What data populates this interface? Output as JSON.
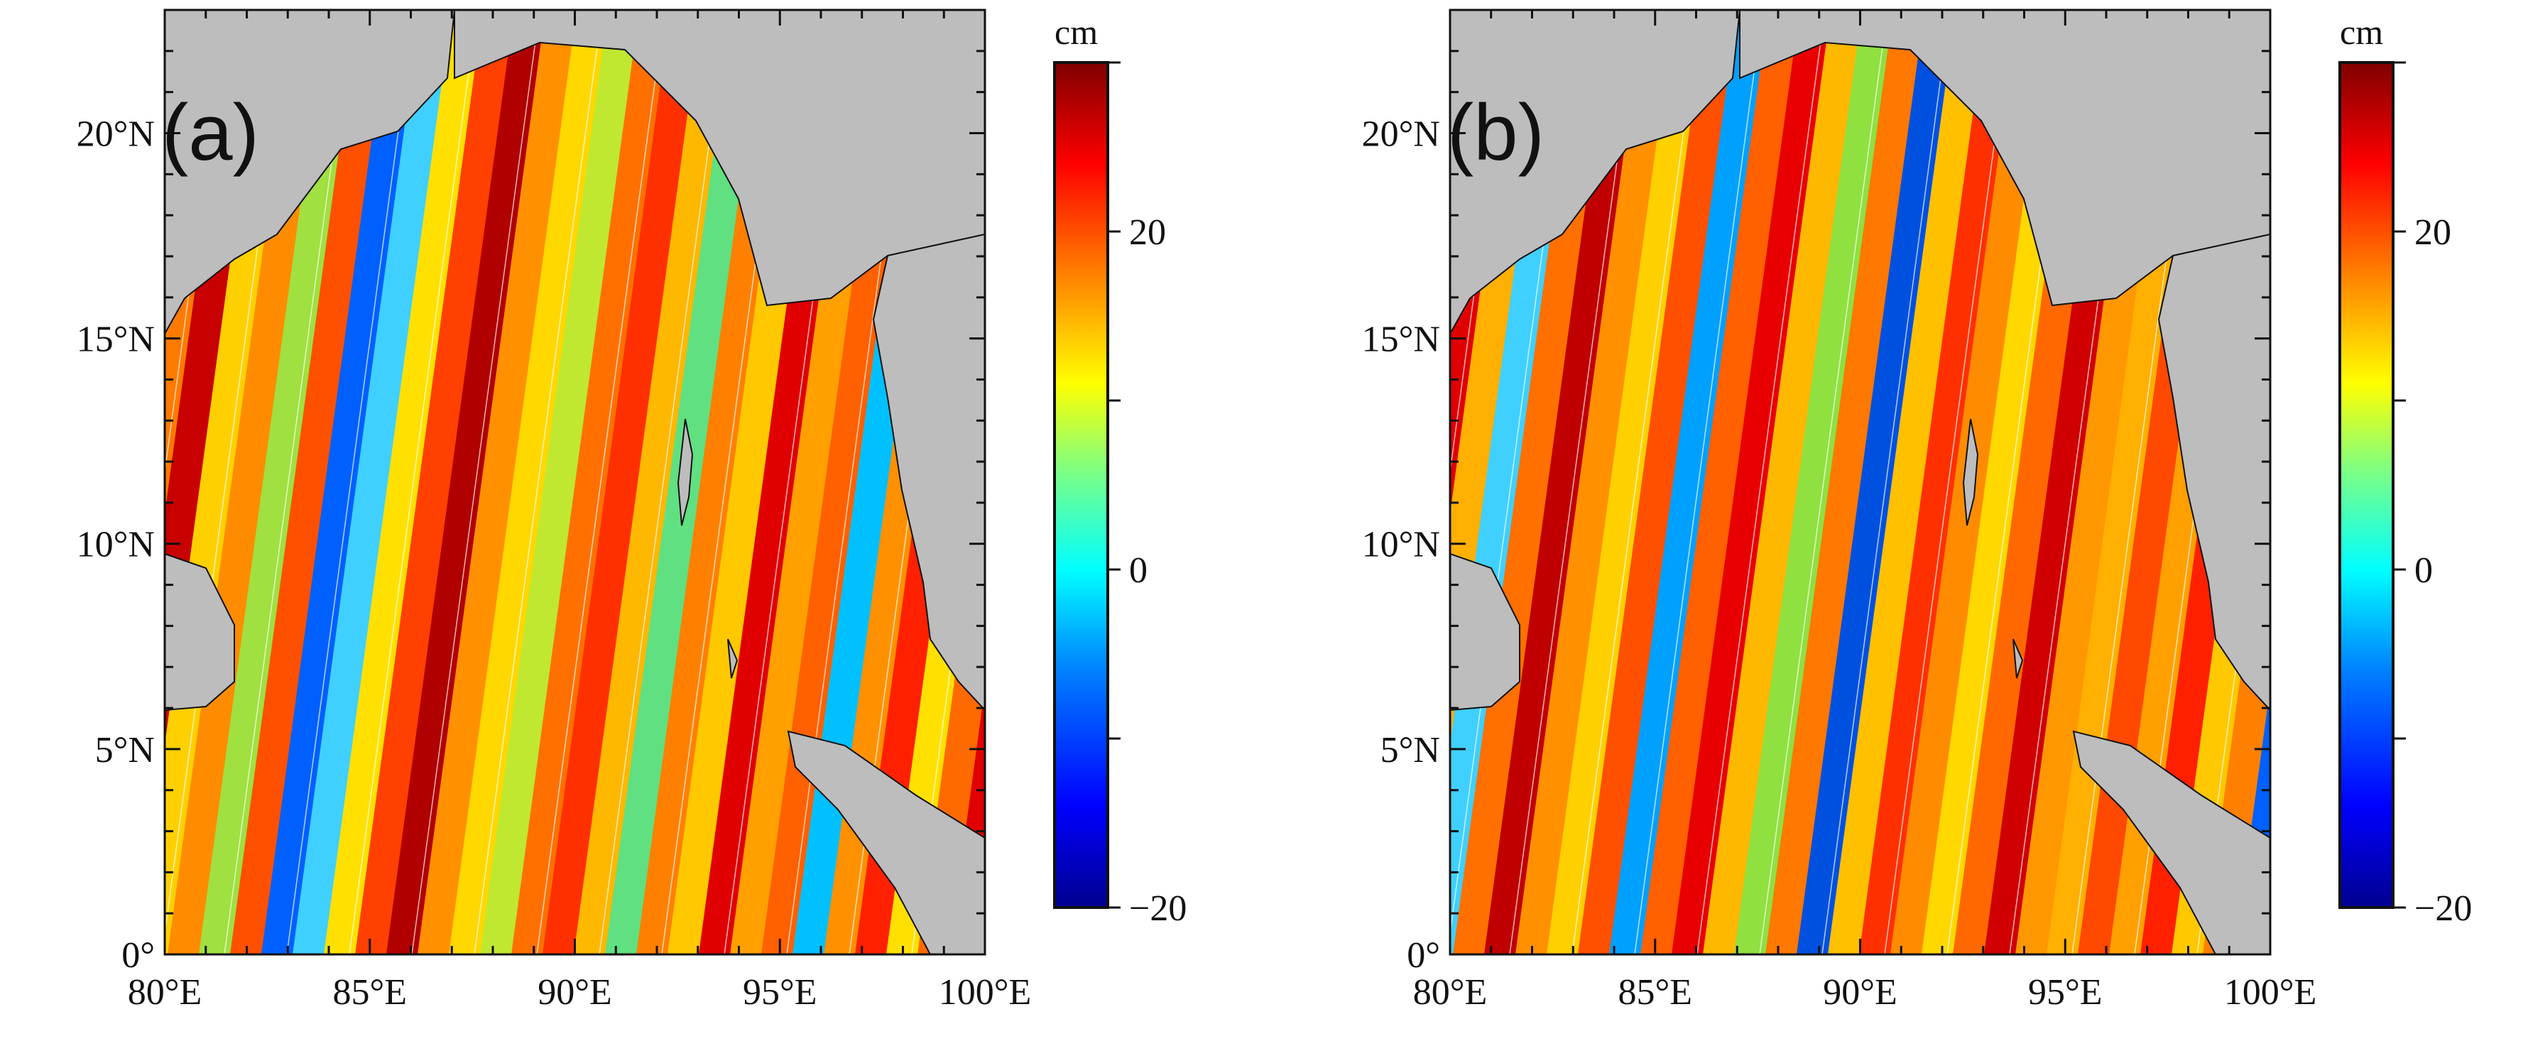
{
  "figure": {
    "type": "map",
    "description": "Two-panel map of sea surface height over the Bay of Bengal",
    "panels": [
      {
        "id": "a",
        "label": "(a)"
      },
      {
        "id": "b",
        "label": "(b)"
      }
    ],
    "lon_ticks": [
      "80°E",
      "85°E",
      "90°E",
      "95°E",
      "100°E"
    ],
    "lat_ticks": [
      "0°",
      "5°N",
      "10°N",
      "15°N",
      "20°N"
    ],
    "lon_range": [
      80,
      100
    ],
    "lat_range": [
      0,
      23
    ],
    "colorbar": {
      "unit": "cm",
      "range": [
        -20,
        30
      ],
      "ticks": [
        "−20",
        "0",
        "20"
      ],
      "tick_values": [
        -20,
        0,
        20
      ],
      "colors": [
        "#00008f",
        "#0000ff",
        "#0080ff",
        "#00ffff",
        "#80ff80",
        "#ffff00",
        "#ff8000",
        "#ff0000",
        "#800000"
      ]
    },
    "land_color": "#bdbdbd"
  }
}
